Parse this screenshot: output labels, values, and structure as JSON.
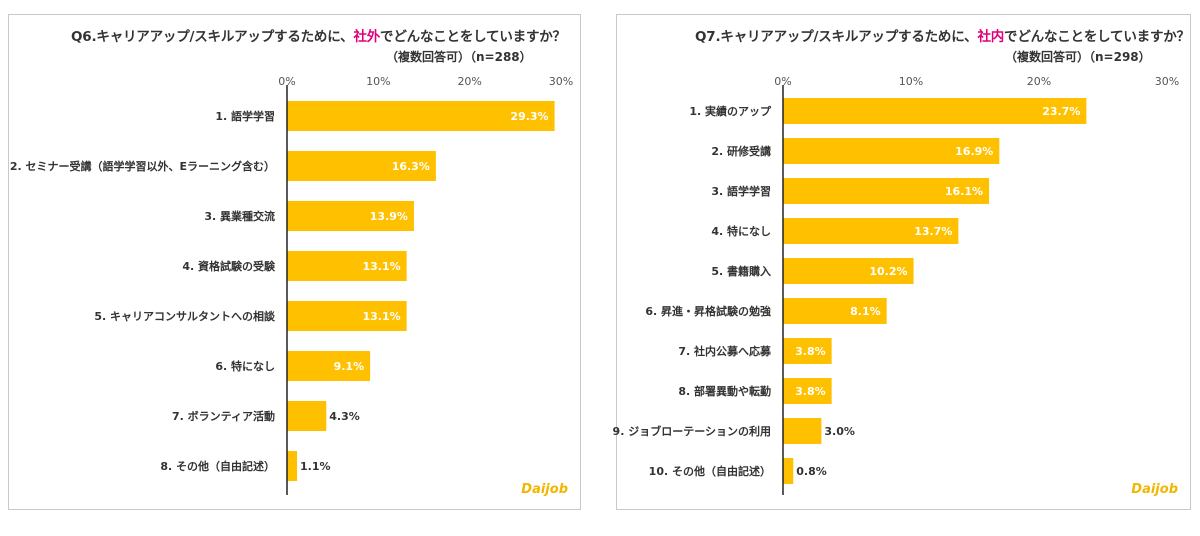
{
  "colors": {
    "bar": "#FFC000",
    "axis": "#222222",
    "hl": "#e0007a"
  },
  "chart_data": [
    {
      "type": "bar",
      "orientation": "horizontal",
      "title_pre": "Q6.キャリアアップ/スキルアップするために、",
      "title_hl": "社外",
      "title_post": "でどんなことをしていますか？",
      "subtitle": "（複数回答可）（n=288）",
      "xlim": [
        0,
        30
      ],
      "ticks": [
        "0%",
        "10%",
        "20%",
        "30%"
      ],
      "categories": [
        "1. 語学学習",
        "2. セミナー受講（語学学習以外、Eラーニング含む）",
        "3. 異業種交流",
        "4. 資格試験の受験",
        "5. キャリアコンサルタントへの相談",
        "6. 特になし",
        "7. ボランティア活動",
        "8. その他（自由記述）"
      ],
      "values": [
        29.3,
        16.3,
        13.9,
        13.1,
        13.1,
        9.1,
        4.3,
        1.1
      ],
      "labels": [
        "29.3%",
        "16.3%",
        "13.9%",
        "13.1%",
        "13.1%",
        "9.1%",
        "4.3%",
        "1.1%"
      ],
      "logo": "Daijob"
    },
    {
      "type": "bar",
      "orientation": "horizontal",
      "title_pre": "Q7.キャリアアップ/スキルアップするために、",
      "title_hl": "社内",
      "title_post": "でどんなことをしていますか？",
      "subtitle": "（複数回答可）（n=298）",
      "xlim": [
        0,
        30
      ],
      "ticks": [
        "0%",
        "10%",
        "20%",
        "30%"
      ],
      "categories": [
        "1. 実績のアップ",
        "2. 研修受講",
        "3. 語学学習",
        "4. 特になし",
        "5. 書籍購入",
        "6. 昇進・昇格試験の勉強",
        "7. 社内公募へ応募",
        "8. 部署異動や転勤",
        "9. ジョブローテーションの利用",
        "10. その他（自由記述）"
      ],
      "values": [
        23.7,
        16.9,
        16.1,
        13.7,
        10.2,
        8.1,
        3.8,
        3.8,
        3.0,
        0.8
      ],
      "labels": [
        "23.7%",
        "16.9%",
        "16.1%",
        "13.7%",
        "10.2%",
        "8.1%",
        "3.8%",
        "3.8%",
        "3.0%",
        "0.8%"
      ],
      "logo": "Daijob"
    }
  ]
}
